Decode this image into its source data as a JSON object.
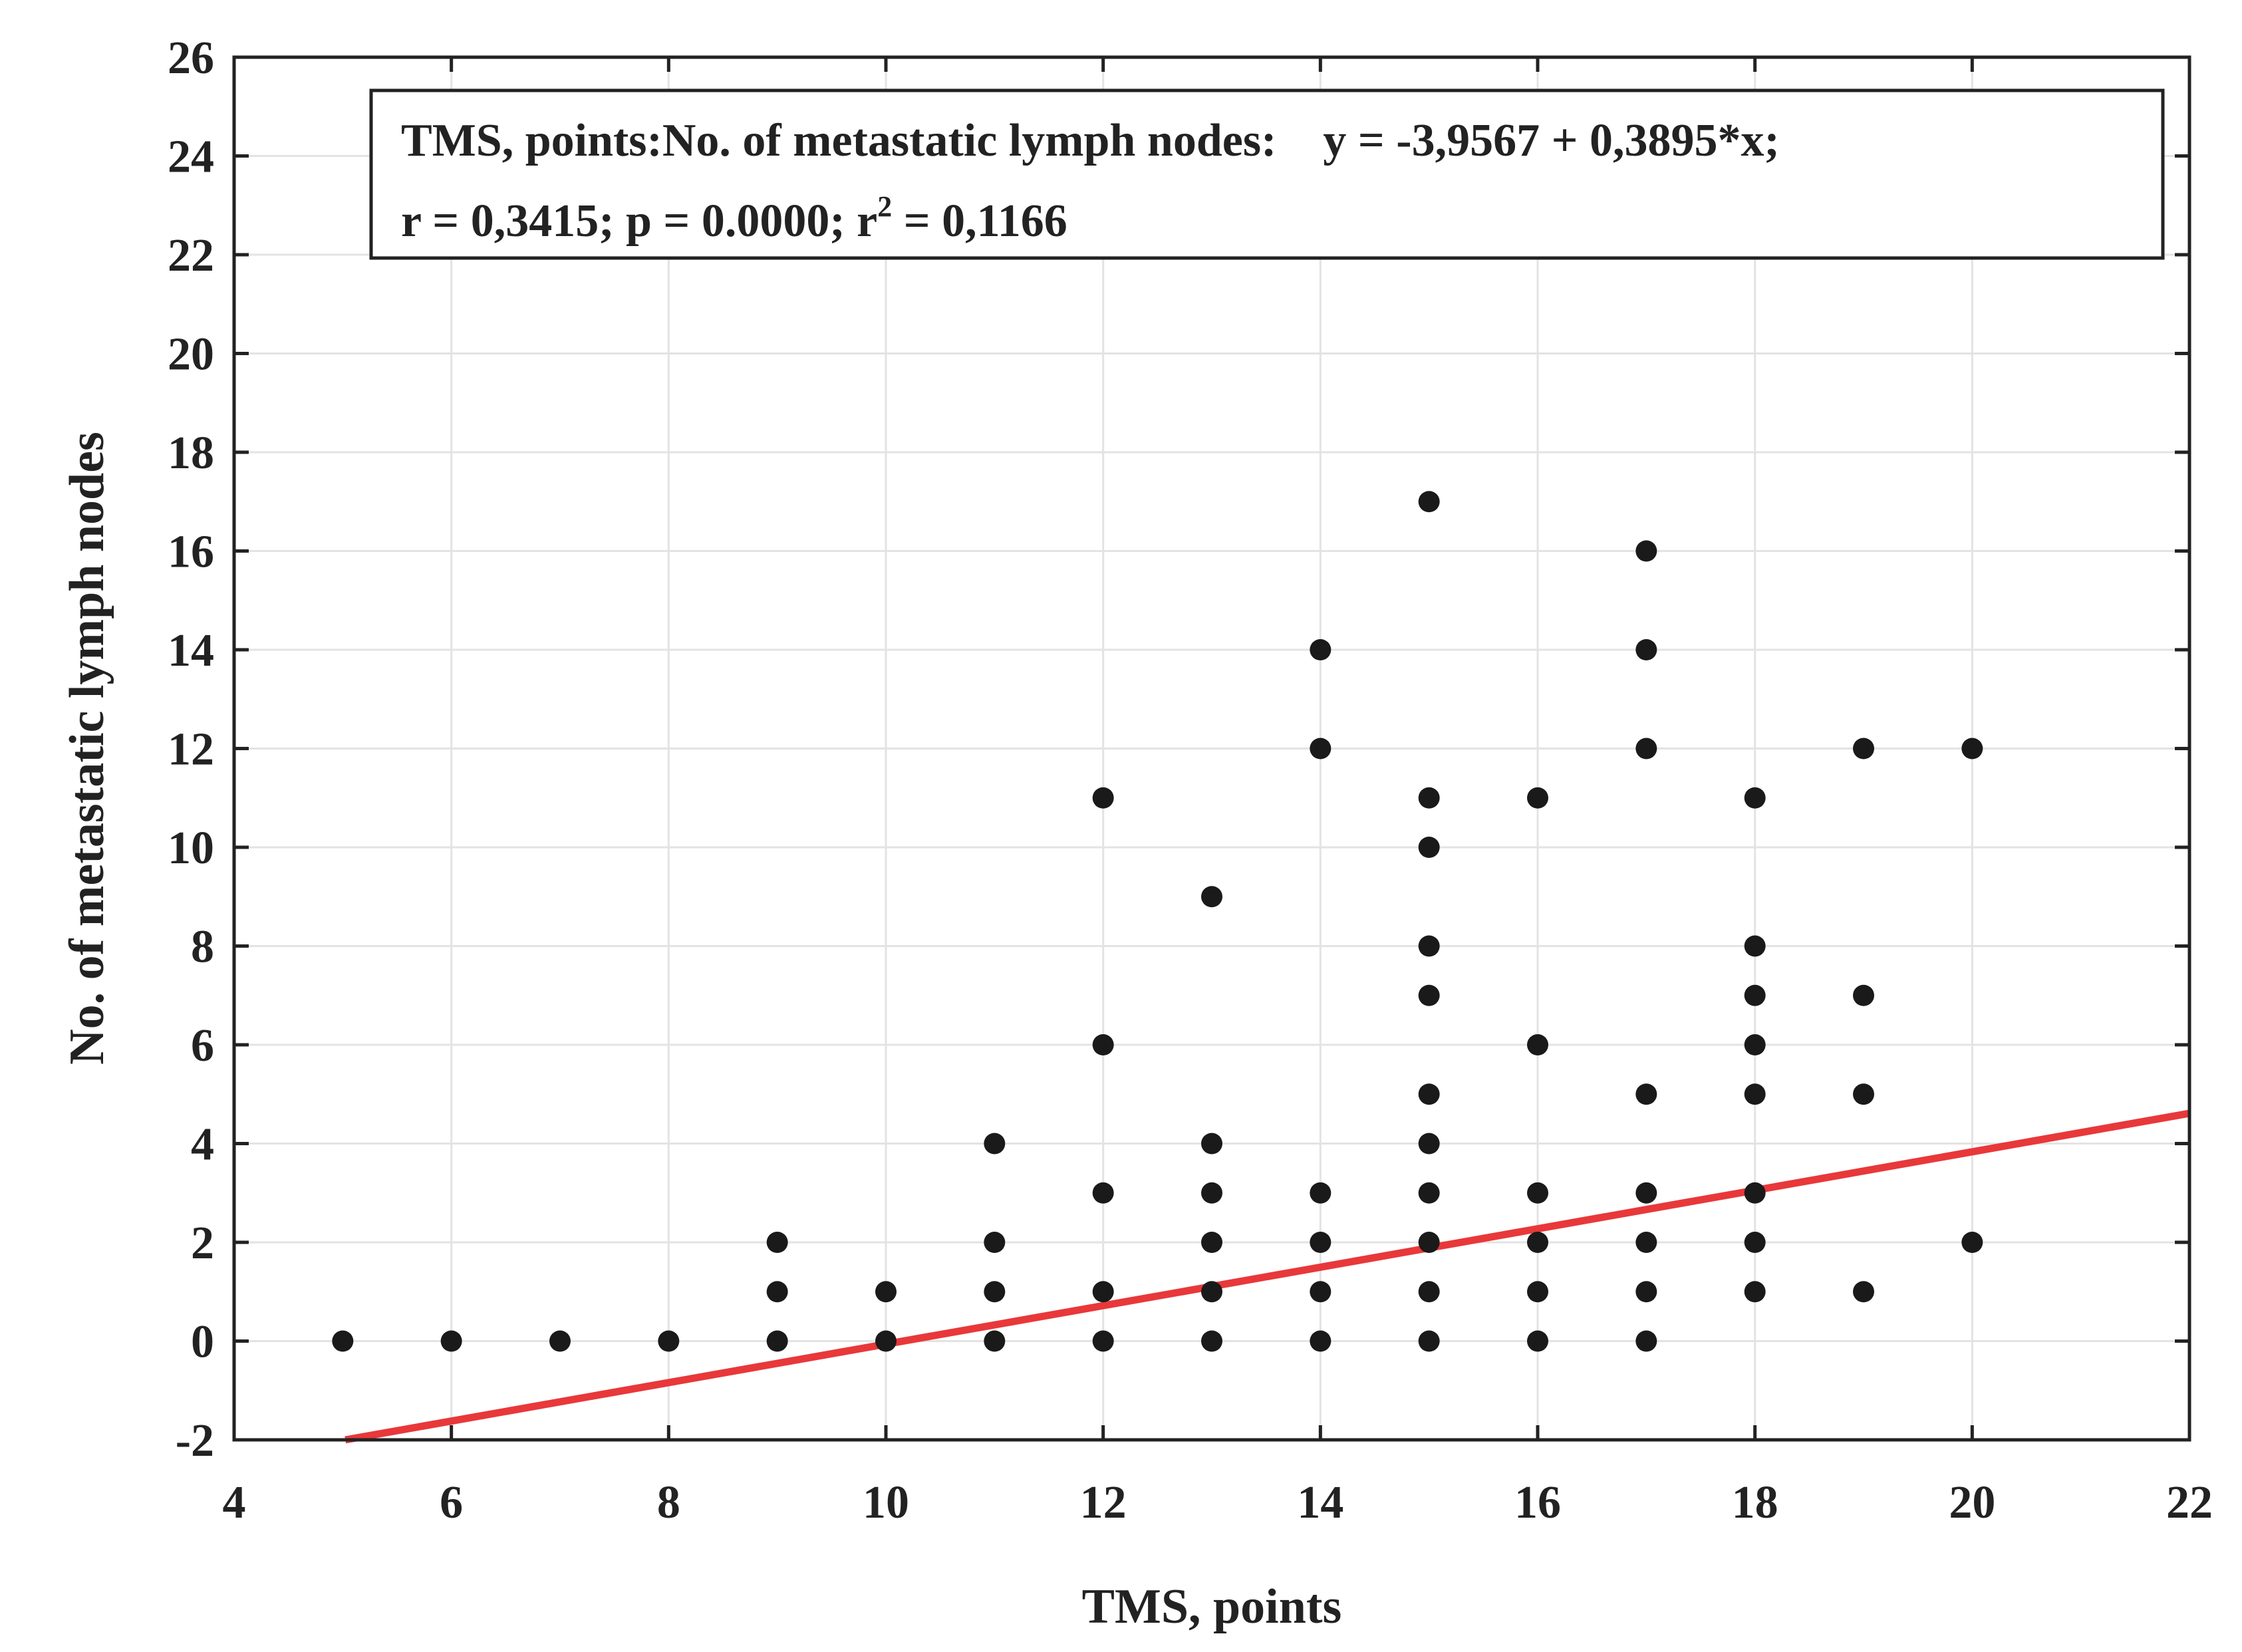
{
  "chart_data": {
    "type": "scatter",
    "xlabel": "TMS, points",
    "ylabel": "No. of metastatic lymph nodes",
    "xlim": [
      4,
      22
    ],
    "ylim": [
      -2,
      26
    ],
    "xticks": [
      4,
      6,
      8,
      10,
      12,
      14,
      16,
      18,
      20,
      22
    ],
    "yticks": [
      -2,
      0,
      2,
      4,
      6,
      8,
      10,
      12,
      14,
      16,
      18,
      20,
      22,
      24,
      26
    ],
    "grid": true,
    "legend_placement": "top",
    "annotation": {
      "line1": "TMS, points:No. of metastatic lymph nodes:    y = -3,9567 + 0,3895*x;",
      "line2_prefix": "r = 0,3415; p = 0.0000; r",
      "line2_sup": "2",
      "line2_suffix": " = 0,1166"
    },
    "fit": {
      "intercept": -3.9567,
      "slope": 0.3895,
      "color": "#e8383a"
    },
    "point_color": "#1a1a1a",
    "points": [
      {
        "x": 5,
        "y": 0
      },
      {
        "x": 6,
        "y": 0
      },
      {
        "x": 7,
        "y": 0
      },
      {
        "x": 8,
        "y": 0
      },
      {
        "x": 9,
        "y": 0
      },
      {
        "x": 9,
        "y": 1
      },
      {
        "x": 9,
        "y": 2
      },
      {
        "x": 10,
        "y": 0
      },
      {
        "x": 10,
        "y": 1
      },
      {
        "x": 11,
        "y": 0
      },
      {
        "x": 11,
        "y": 1
      },
      {
        "x": 11,
        "y": 2
      },
      {
        "x": 11,
        "y": 4
      },
      {
        "x": 12,
        "y": 0
      },
      {
        "x": 12,
        "y": 1
      },
      {
        "x": 12,
        "y": 3
      },
      {
        "x": 12,
        "y": 6
      },
      {
        "x": 12,
        "y": 11
      },
      {
        "x": 13,
        "y": 0
      },
      {
        "x": 13,
        "y": 1
      },
      {
        "x": 13,
        "y": 2
      },
      {
        "x": 13,
        "y": 3
      },
      {
        "x": 13,
        "y": 4
      },
      {
        "x": 13,
        "y": 9
      },
      {
        "x": 14,
        "y": 0
      },
      {
        "x": 14,
        "y": 1
      },
      {
        "x": 14,
        "y": 2
      },
      {
        "x": 14,
        "y": 3
      },
      {
        "x": 14,
        "y": 12
      },
      {
        "x": 14,
        "y": 14
      },
      {
        "x": 15,
        "y": 0
      },
      {
        "x": 15,
        "y": 1
      },
      {
        "x": 15,
        "y": 2
      },
      {
        "x": 15,
        "y": 3
      },
      {
        "x": 15,
        "y": 4
      },
      {
        "x": 15,
        "y": 5
      },
      {
        "x": 15,
        "y": 7
      },
      {
        "x": 15,
        "y": 8
      },
      {
        "x": 15,
        "y": 10
      },
      {
        "x": 15,
        "y": 11
      },
      {
        "x": 15,
        "y": 17
      },
      {
        "x": 16,
        "y": 0
      },
      {
        "x": 16,
        "y": 1
      },
      {
        "x": 16,
        "y": 2
      },
      {
        "x": 16,
        "y": 3
      },
      {
        "x": 16,
        "y": 6
      },
      {
        "x": 16,
        "y": 11
      },
      {
        "x": 17,
        "y": 0
      },
      {
        "x": 17,
        "y": 1
      },
      {
        "x": 17,
        "y": 2
      },
      {
        "x": 17,
        "y": 3
      },
      {
        "x": 17,
        "y": 5
      },
      {
        "x": 17,
        "y": 12
      },
      {
        "x": 17,
        "y": 14
      },
      {
        "x": 17,
        "y": 16
      },
      {
        "x": 18,
        "y": 1
      },
      {
        "x": 18,
        "y": 2
      },
      {
        "x": 18,
        "y": 3
      },
      {
        "x": 18,
        "y": 5
      },
      {
        "x": 18,
        "y": 6
      },
      {
        "x": 18,
        "y": 7
      },
      {
        "x": 18,
        "y": 8
      },
      {
        "x": 18,
        "y": 11
      },
      {
        "x": 19,
        "y": 1
      },
      {
        "x": 19,
        "y": 5
      },
      {
        "x": 19,
        "y": 7
      },
      {
        "x": 19,
        "y": 12
      },
      {
        "x": 20,
        "y": 2
      },
      {
        "x": 20,
        "y": 12
      }
    ]
  }
}
